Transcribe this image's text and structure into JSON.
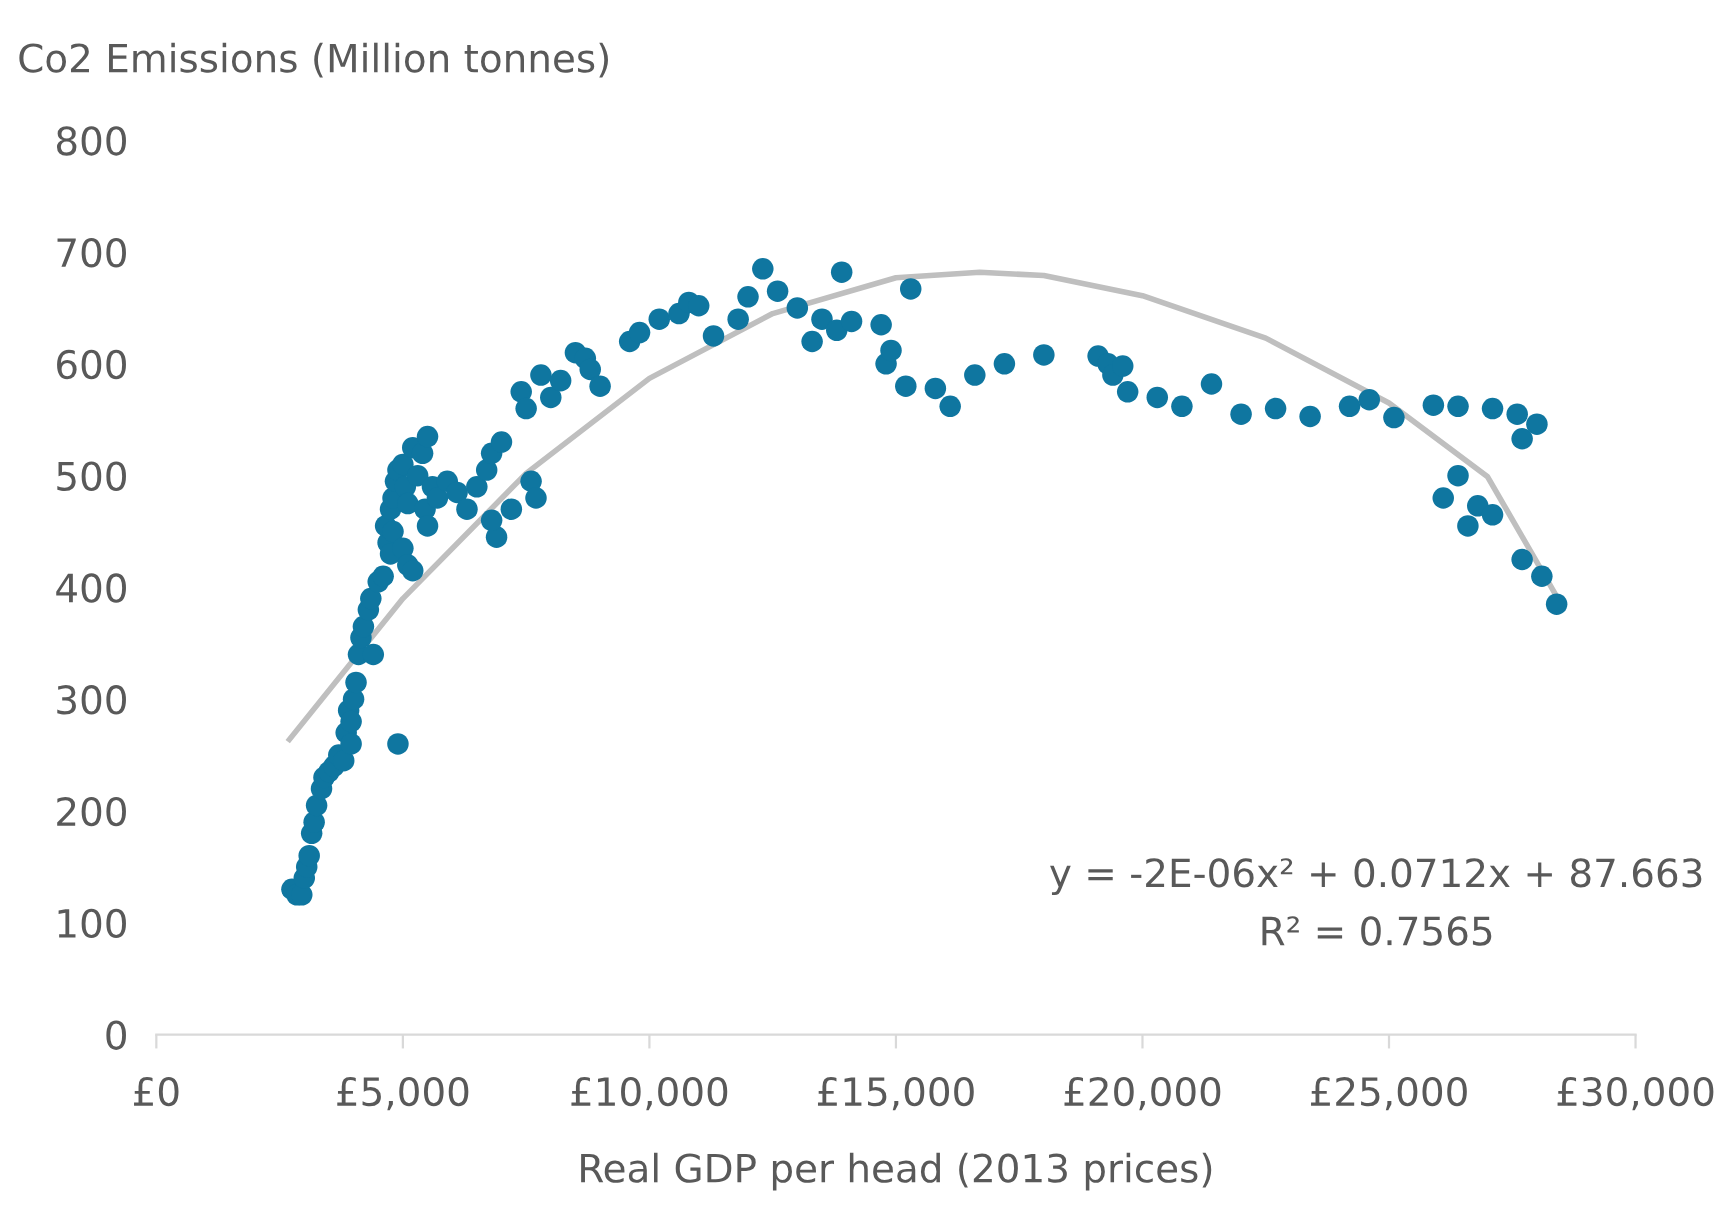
{
  "chart_data": {
    "type": "scatter",
    "ylabel": "Co2 Emissions (Million tonnes)",
    "xlabel": "Real GDP per head (2013 prices)",
    "xlim": [
      0,
      30000
    ],
    "ylim": [
      0,
      800
    ],
    "xticks": [
      {
        "value": 0,
        "label": "£0"
      },
      {
        "value": 5000,
        "label": "£5,000"
      },
      {
        "value": 10000,
        "label": "£10,000"
      },
      {
        "value": 15000,
        "label": "£15,000"
      },
      {
        "value": 20000,
        "label": "£20,000"
      },
      {
        "value": 25000,
        "label": "£25,000"
      },
      {
        "value": 30000,
        "label": "£30,000"
      }
    ],
    "yticks": [
      0,
      100,
      200,
      300,
      400,
      500,
      600,
      700,
      800
    ],
    "grid": false,
    "legend": false,
    "marker": "circle",
    "annotations": [
      "y = -2E-06x² + 0.0712x + 87.663",
      "R² = 0.7565"
    ],
    "series": [
      {
        "color": "#0f76a0",
        "x": [
          2750,
          2850,
          2950,
          3000,
          3050,
          3100,
          3150,
          3200,
          3250,
          3350,
          3400,
          3500,
          3600,
          3700,
          3800,
          3850,
          3900,
          3950,
          4000,
          3950,
          4050,
          4100,
          4150,
          4200,
          4300,
          4400,
          4350,
          4500,
          4600,
          4700,
          4650,
          4750,
          4800,
          4850,
          4900,
          4750,
          4800,
          4900,
          5000,
          5050,
          5100,
          5000,
          5100,
          5200,
          5300,
          5400,
          5500,
          5450,
          5500,
          5600,
          5200,
          5700,
          5900,
          6100,
          6300,
          6500,
          6700,
          6800,
          6900,
          7000,
          6800,
          7200,
          7400,
          7500,
          7600,
          7700,
          7800,
          8000,
          8200,
          8500,
          8700,
          8800,
          9000,
          9600,
          9800,
          10200,
          10600,
          10800,
          11000,
          11300,
          11800,
          12000,
          12300,
          12600,
          13000,
          13300,
          13500,
          13800,
          13900,
          14100,
          14700,
          14800,
          14900,
          15200,
          15300,
          15800,
          16100,
          16600,
          17200,
          18000,
          19100,
          19300,
          19400,
          19600,
          19700,
          20300,
          20800,
          21400,
          22000,
          22700,
          23400,
          24200,
          24600,
          25100,
          25900,
          26400,
          27100,
          27600,
          27700,
          28000,
          26100,
          26400,
          26600,
          26800,
          27100,
          27700,
          28100,
          28400
        ],
        "values": [
          130,
          125,
          125,
          140,
          150,
          160,
          180,
          190,
          205,
          220,
          230,
          235,
          240,
          250,
          245,
          270,
          290,
          280,
          300,
          260,
          315,
          340,
          355,
          365,
          380,
          340,
          390,
          405,
          410,
          440,
          455,
          470,
          480,
          495,
          505,
          430,
          450,
          260,
          510,
          490,
          475,
          435,
          420,
          525,
          500,
          520,
          535,
          470,
          455,
          490,
          415,
          480,
          495,
          485,
          470,
          490,
          505,
          520,
          445,
          530,
          460,
          470,
          575,
          560,
          495,
          480,
          590,
          570,
          585,
          610,
          605,
          595,
          580,
          620,
          628,
          640,
          645,
          655,
          652,
          625,
          640,
          660,
          685,
          665,
          650,
          620,
          640,
          630,
          682,
          638,
          635,
          600,
          612,
          580,
          667,
          578,
          562,
          590,
          600,
          608,
          607,
          600,
          590,
          598,
          575,
          570,
          562,
          582,
          555,
          560,
          553,
          562,
          568,
          552,
          563,
          562,
          560,
          555,
          533,
          546,
          480,
          500,
          455,
          473,
          465,
          425,
          410,
          385
        ]
      },
      {
        "type": "line",
        "color": "#bfbfbf",
        "marker": "none",
        "x": [
          2700,
          5000,
          7500,
          10000,
          12500,
          15000,
          16700,
          18000,
          20000,
          22500,
          25000,
          27000,
          28400
        ],
        "values": [
          264,
          390,
          502,
          587,
          645,
          677,
          682,
          679,
          661,
          623,
          565,
          499,
          392
        ]
      }
    ]
  }
}
